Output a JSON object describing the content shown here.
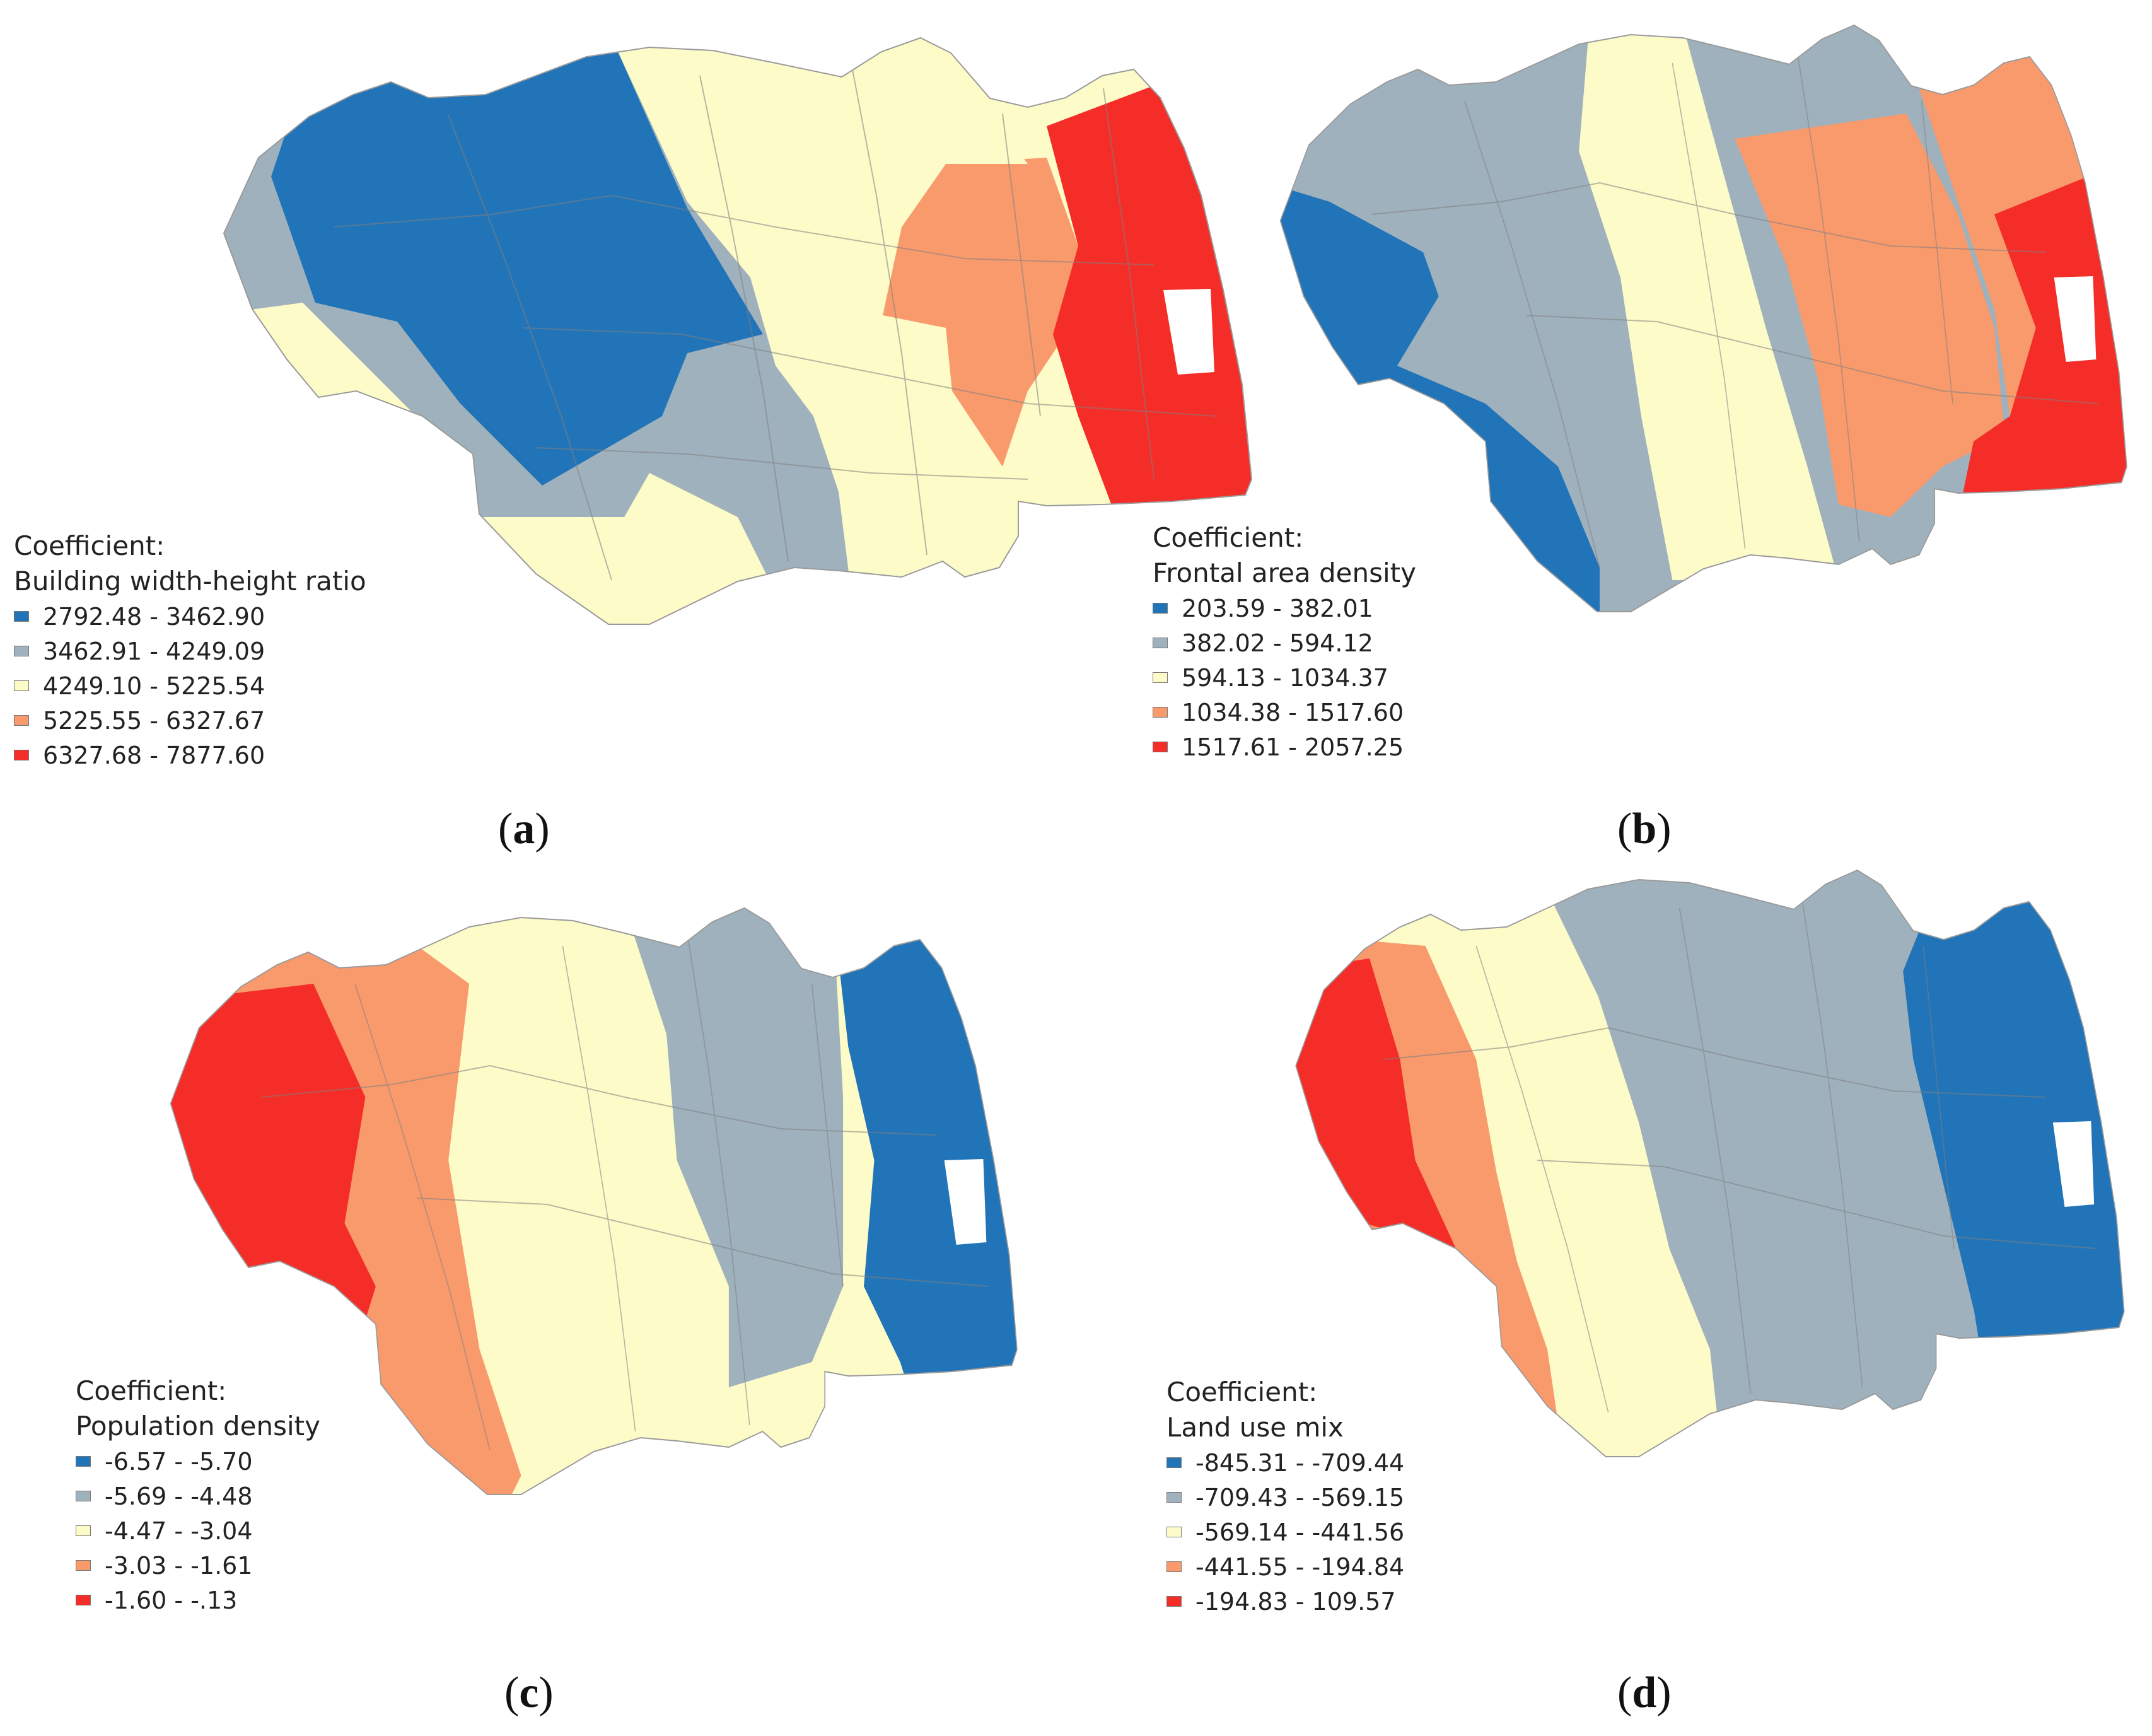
{
  "colors": {
    "c1": "#2274b8",
    "c2": "#9fb1bd",
    "c3": "#fdfbc8",
    "c4": "#f99a6d",
    "c5": "#f52d28",
    "boundary": "#b8b8b8"
  },
  "panels": [
    {
      "id": "a",
      "legend_title": "Coefficient:",
      "variable": "Building width-height ratio",
      "classes": [
        "2792.48 - 3462.90",
        "3462.91 - 4249.09",
        "4249.10 - 5225.54",
        "5225.55 - 6327.67",
        "6327.68 - 7877.60"
      ],
      "caption_open": "(",
      "caption_letter": "a",
      "caption_close": ")"
    },
    {
      "id": "b",
      "legend_title": "Coefficient:",
      "variable": "Frontal area density",
      "classes": [
        "203.59 - 382.01",
        "382.02 - 594.12",
        "594.13 - 1034.37",
        "1034.38 - 1517.60",
        "1517.61 - 2057.25"
      ],
      "caption_open": "(",
      "caption_letter": "b",
      "caption_close": ")"
    },
    {
      "id": "c",
      "legend_title": "Coefficient:",
      "variable": "Population density",
      "classes": [
        "-6.57 - -5.70",
        "-5.69 - -4.48",
        "-4.47 - -3.04",
        "-3.03 - -1.61",
        "-1.60 - -.13"
      ],
      "caption_open": "(",
      "caption_letter": "c",
      "caption_close": ")"
    },
    {
      "id": "d",
      "legend_title": "Coefficient:",
      "variable": "Land use mix",
      "classes": [
        "-845.31 - -709.44",
        "-709.43 - -569.15",
        "-569.14 - -441.56",
        "-441.55 - -194.84",
        "-194.83 - 109.57"
      ],
      "caption_open": "(",
      "caption_letter": "d",
      "caption_close": ")"
    }
  ]
}
